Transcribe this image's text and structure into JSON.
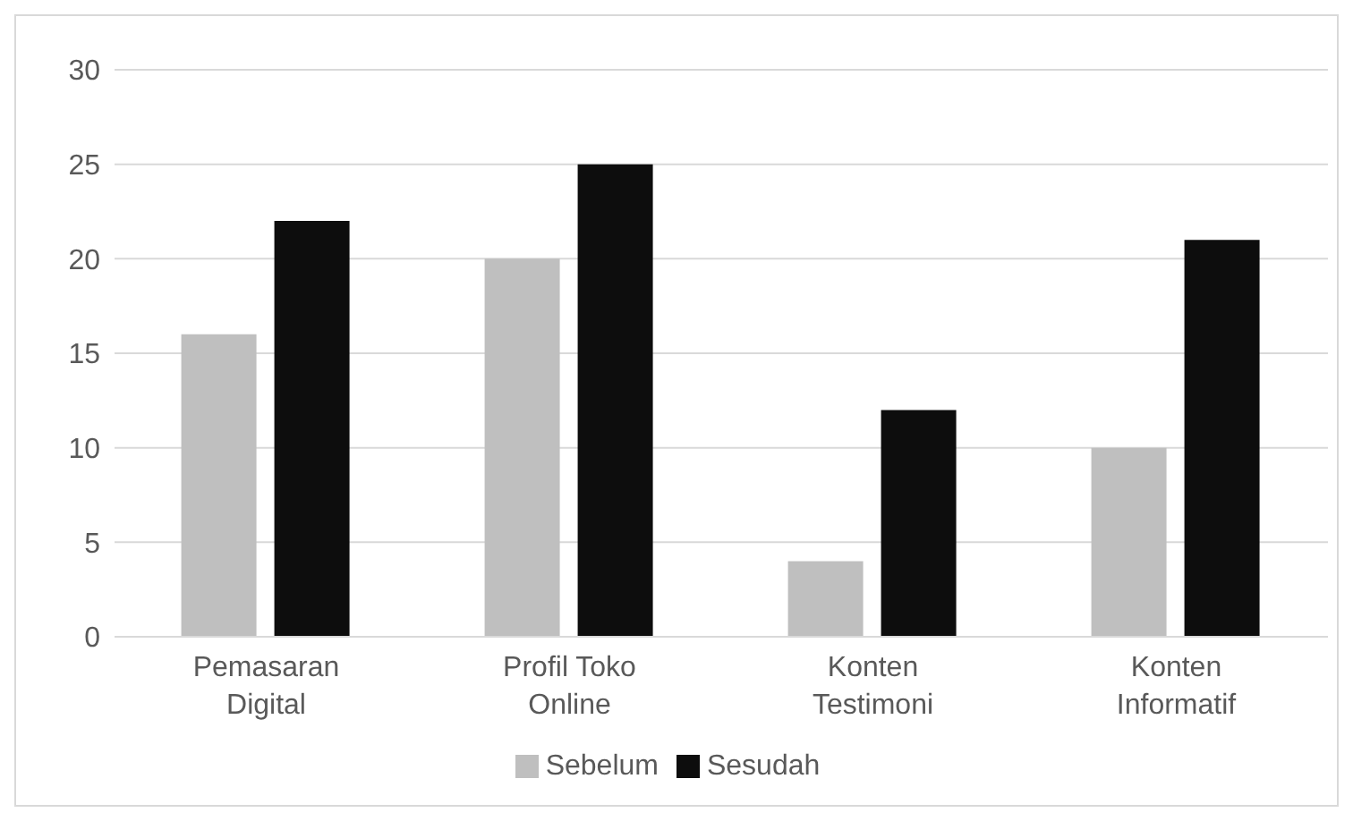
{
  "chart_data": {
    "type": "bar",
    "categories": [
      "Pemasaran Digital",
      "Profil Toko Online",
      "Konten Testimoni",
      "Konten Informatif"
    ],
    "series": [
      {
        "name": "Sebelum",
        "color": "#bfbfbf",
        "values": [
          16,
          20,
          4,
          10
        ]
      },
      {
        "name": "Sesudah",
        "color": "#0d0d0d",
        "values": [
          22,
          25,
          12,
          21
        ]
      }
    ],
    "ylim": [
      0,
      30
    ],
    "yticks": [
      0,
      5,
      10,
      15,
      20,
      25,
      30
    ],
    "grid": "y",
    "legend": "bottom"
  }
}
